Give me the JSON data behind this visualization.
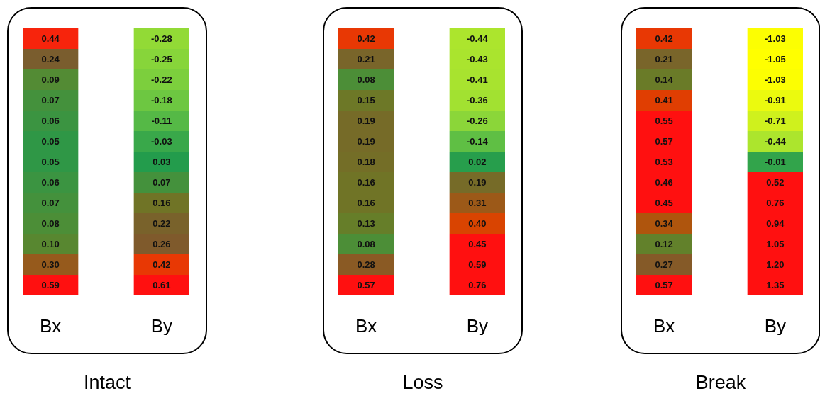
{
  "chart_data": [
    {
      "type": "heatmap",
      "title": "Intact",
      "categories": [
        "Bx",
        "By"
      ],
      "y_categories": [
        null,
        null,
        null,
        null,
        null,
        null,
        null,
        null,
        null,
        null,
        null,
        null,
        null
      ],
      "data_labels": true,
      "cells": [
        [
          0.44,
          -0.28
        ],
        [
          0.24,
          -0.25
        ],
        [
          0.09,
          -0.22
        ],
        [
          0.07,
          -0.18
        ],
        [
          0.06,
          -0.11
        ],
        [
          0.05,
          -0.03
        ],
        [
          0.05,
          0.03
        ],
        [
          0.06,
          0.07
        ],
        [
          0.07,
          0.16
        ],
        [
          0.08,
          0.22
        ],
        [
          0.1,
          0.26
        ],
        [
          0.3,
          0.42
        ],
        [
          0.59,
          0.61
        ]
      ],
      "cell_labels": [
        [
          "0.44",
          "-0.28"
        ],
        [
          "0.24",
          "-0.25"
        ],
        [
          "0.09",
          "-0.22"
        ],
        [
          "0.07",
          "-0.18"
        ],
        [
          "0.06",
          "-0.11"
        ],
        [
          "0.05",
          "-0.03"
        ],
        [
          "0.05",
          "0.03"
        ],
        [
          "0.06",
          "0.07"
        ],
        [
          "0.07",
          "0.16"
        ],
        [
          "0.08",
          "0.22"
        ],
        [
          "0.10",
          "0.26"
        ],
        [
          "0.30",
          "0.42"
        ],
        [
          "0.59",
          "0.61"
        ]
      ]
    },
    {
      "type": "heatmap",
      "title": "Loss",
      "categories": [
        "Bx",
        "By"
      ],
      "y_categories": [
        null,
        null,
        null,
        null,
        null,
        null,
        null,
        null,
        null,
        null,
        null,
        null,
        null
      ],
      "data_labels": true,
      "cells": [
        [
          0.42,
          -0.44
        ],
        [
          0.21,
          -0.43
        ],
        [
          0.08,
          -0.41
        ],
        [
          0.15,
          -0.36
        ],
        [
          0.19,
          -0.26
        ],
        [
          0.19,
          -0.14
        ],
        [
          0.18,
          0.02
        ],
        [
          0.16,
          0.19
        ],
        [
          0.16,
          0.31
        ],
        [
          0.13,
          0.4
        ],
        [
          0.08,
          0.45
        ],
        [
          0.28,
          0.59
        ],
        [
          0.57,
          0.76
        ]
      ],
      "cell_labels": [
        [
          "0.42",
          "-0.44"
        ],
        [
          "0.21",
          "-0.43"
        ],
        [
          "0.08",
          "-0.41"
        ],
        [
          "0.15",
          "-0.36"
        ],
        [
          "0.19",
          "-0.26"
        ],
        [
          "0.19",
          "-0.14"
        ],
        [
          "0.18",
          "0.02"
        ],
        [
          "0.16",
          "0.19"
        ],
        [
          "0.16",
          "0.31"
        ],
        [
          "0.13",
          "0.40"
        ],
        [
          "0.08",
          "0.45"
        ],
        [
          "0.28",
          "0.59"
        ],
        [
          "0.57",
          "0.76"
        ]
      ]
    },
    {
      "type": "heatmap",
      "title": "Break",
      "categories": [
        "Bx",
        "By"
      ],
      "y_categories": [
        null,
        null,
        null,
        null,
        null,
        null,
        null,
        null,
        null,
        null,
        null,
        null,
        null
      ],
      "data_labels": true,
      "cells": [
        [
          0.42,
          -1.03
        ],
        [
          0.21,
          -1.05
        ],
        [
          0.14,
          -1.03
        ],
        [
          0.41,
          -0.91
        ],
        [
          0.55,
          -0.71
        ],
        [
          0.57,
          -0.44
        ],
        [
          0.53,
          -0.01
        ],
        [
          0.46,
          0.52
        ],
        [
          0.45,
          0.76
        ],
        [
          0.34,
          0.94
        ],
        [
          0.12,
          1.05
        ],
        [
          0.27,
          1.2
        ],
        [
          0.57,
          1.35
        ]
      ],
      "cell_labels": [
        [
          "0.42",
          "-1.03"
        ],
        [
          "0.21",
          "-1.05"
        ],
        [
          "0.14",
          "-1.03"
        ],
        [
          "0.41",
          "-0.91"
        ],
        [
          "0.55",
          "-0.71"
        ],
        [
          "0.57",
          "-0.44"
        ],
        [
          "0.53",
          "-0.01"
        ],
        [
          "0.46",
          "0.52"
        ],
        [
          "0.45",
          "0.76"
        ],
        [
          "0.34",
          "0.94"
        ],
        [
          "0.12",
          "1.05"
        ],
        [
          "0.27",
          "1.20"
        ],
        [
          "0.57",
          "1.35"
        ]
      ]
    }
  ]
}
